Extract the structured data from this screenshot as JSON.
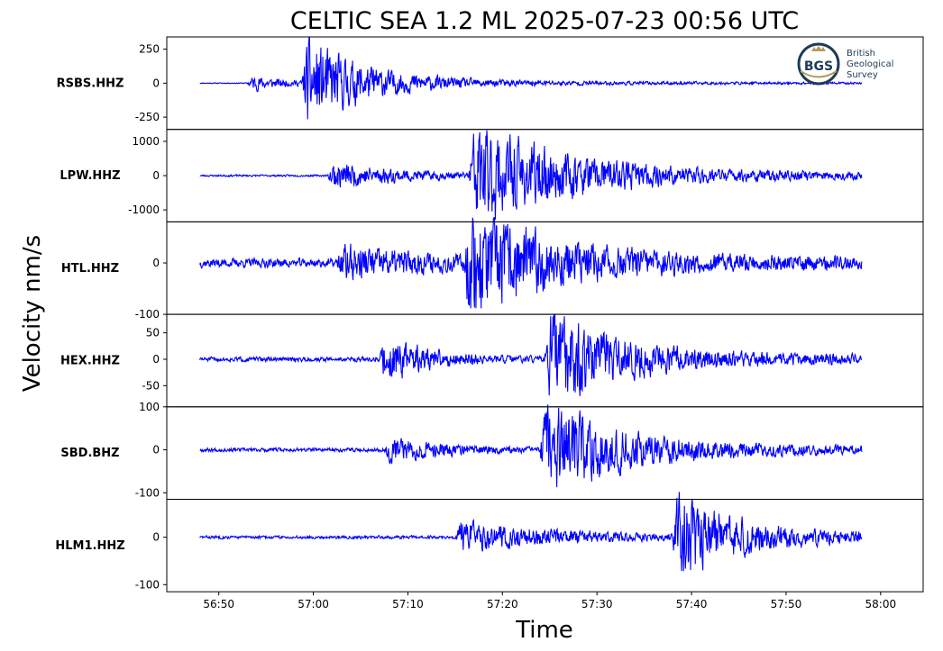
{
  "title": "CELTIC SEA 1.2 ML   2025-07-23 00:56 UTC",
  "xlabel": "Time",
  "ylabel": "Velocity nm/s",
  "logo": {
    "lines": [
      "British",
      "Geological",
      "Survey"
    ],
    "mark": "BGS",
    "color": "#1f3b55",
    "accent": "#b8975a"
  },
  "chart_data": {
    "type": "line",
    "x_unit": "time (mm:ss past 00:00 hour)",
    "x_ticks": [
      "56:50",
      "57:00",
      "57:10",
      "57:20",
      "57:30",
      "57:40",
      "57:50",
      "58:00"
    ],
    "xlim_seconds": [
      3404.5,
      3484.5
    ],
    "trace_window_seconds": [
      3408,
      3478
    ],
    "line_color": "#0000ff",
    "series": [
      {
        "name": "RSBS.HHZ",
        "ylim": [
          -340,
          340
        ],
        "yticks": [
          {
            "v": 250,
            "t": "250"
          },
          {
            "v": 0,
            "t": "0"
          },
          {
            "v": -250,
            "t": "-250"
          }
        ],
        "noise": 3,
        "phases": [
          {
            "t": 3413.0,
            "amp": 60,
            "decay": 4
          },
          {
            "t": 3418.8,
            "amp": 320,
            "decay": 6
          }
        ],
        "tail_amp": 20,
        "seed": 11
      },
      {
        "name": "LPW.HHZ",
        "ylim": [
          -1350,
          1350
        ],
        "yticks": [
          {
            "v": 1000,
            "t": "1000"
          },
          {
            "v": 0,
            "t": "0"
          },
          {
            "v": -1000,
            "t": "-1000"
          }
        ],
        "noise": 25,
        "phases": [
          {
            "t": 3421.5,
            "amp": 400,
            "decay": 8
          },
          {
            "t": 3436.5,
            "amp": 1300,
            "decay": 9
          }
        ],
        "tail_amp": 200,
        "seed": 23
      },
      {
        "name": "HTL.HHZ",
        "ylim": [
          -100,
          80
        ],
        "yticks": [
          {
            "v": 0,
            "t": "0"
          },
          {
            "v": -100,
            "t": "-100"
          }
        ],
        "noise": 8,
        "phases": [
          {
            "t": 3422.5,
            "amp": 30,
            "decay": 10
          },
          {
            "t": 3436.0,
            "amp": 90,
            "decay": 8
          }
        ],
        "tail_amp": 12,
        "seed": 37
      },
      {
        "name": "HEX.HHZ",
        "ylim": [
          -90,
          85
        ],
        "yticks": [
          {
            "v": 50,
            "t": "50"
          },
          {
            "v": 0,
            "t": "0"
          },
          {
            "v": -50,
            "t": "-50"
          }
        ],
        "noise": 4,
        "phases": [
          {
            "t": 3427.0,
            "amp": 45,
            "decay": 5
          },
          {
            "t": 3444.5,
            "amp": 85,
            "decay": 7
          }
        ],
        "tail_amp": 10,
        "seed": 51
      },
      {
        "name": "SBD.BHZ",
        "ylim": [
          -115,
          100
        ],
        "yticks": [
          {
            "v": 100,
            "t": "100"
          },
          {
            "v": 0,
            "t": "0"
          },
          {
            "v": -100,
            "t": "-100"
          }
        ],
        "noise": 4,
        "phases": [
          {
            "t": 3427.5,
            "amp": 30,
            "decay": 6
          },
          {
            "t": 3444.0,
            "amp": 95,
            "decay": 8
          }
        ],
        "tail_amp": 10,
        "seed": 67
      },
      {
        "name": "HLM1.HHZ",
        "ylim": [
          -115,
          80
        ],
        "yticks": [
          {
            "v": 0,
            "t": "0"
          },
          {
            "v": -100,
            "t": "-100"
          }
        ],
        "noise": 3,
        "phases": [
          {
            "t": 3435.0,
            "amp": 30,
            "decay": 12
          },
          {
            "t": 3458.0,
            "amp": 85,
            "decay": 6
          }
        ],
        "tail_amp": 8,
        "seed": 83
      }
    ]
  }
}
